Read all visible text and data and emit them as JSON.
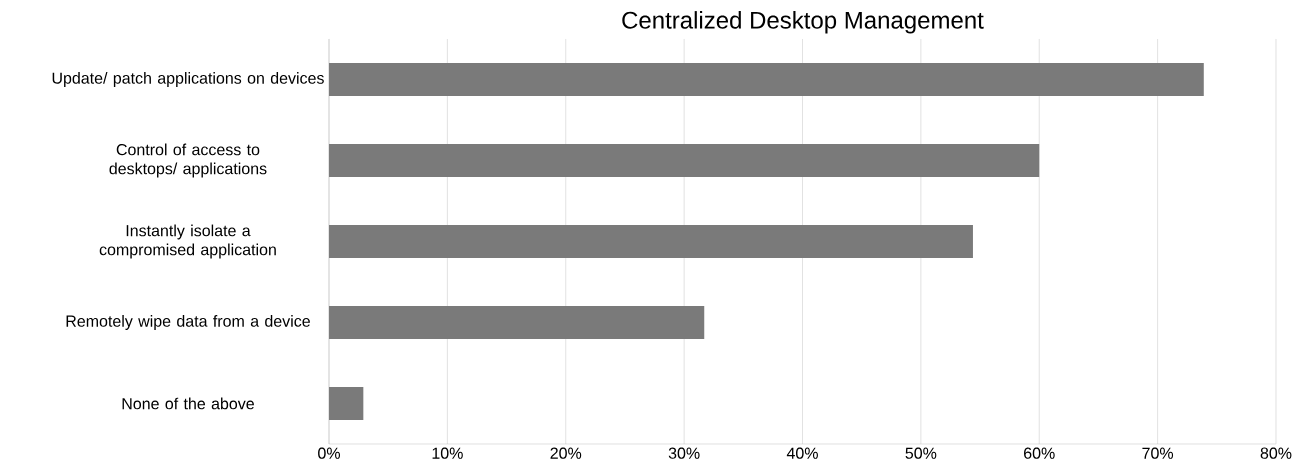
{
  "chart_data": {
    "type": "bar",
    "orientation": "horizontal",
    "title": "Centralized Desktop Management",
    "categories": [
      "Update/ patch applications on devices",
      "Control of access to desktops/ applications",
      "Instantly isolate a compromised application",
      "Remotely wipe data from a device",
      "None of the above"
    ],
    "values": [
      73.9,
      60.0,
      54.4,
      31.7,
      2.9
    ],
    "color": "#7a7a7a",
    "xlim": [
      0,
      80
    ],
    "xticks": [
      {
        "value": 0,
        "label": "0%"
      },
      {
        "value": 10,
        "label": "10%"
      },
      {
        "value": 20,
        "label": "20%"
      },
      {
        "value": 30,
        "label": "30%"
      },
      {
        "value": 40,
        "label": "40%"
      },
      {
        "value": 50,
        "label": "50%"
      },
      {
        "value": 60,
        "label": "60%"
      },
      {
        "value": 70,
        "label": "70%"
      },
      {
        "value": 80,
        "label": "80%"
      }
    ],
    "grid": "x"
  }
}
